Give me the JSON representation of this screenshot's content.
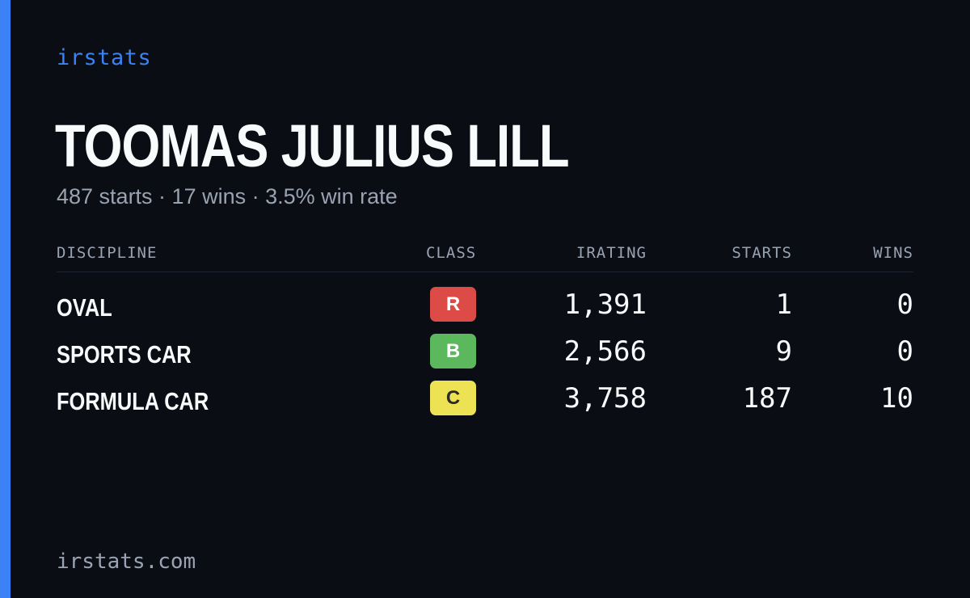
{
  "brand": "irstats",
  "driver": {
    "name": "TOOMAS JULIUS LILL",
    "summary": "487 starts · 17 wins · 3.5% win rate"
  },
  "table": {
    "headers": {
      "discipline": "DISCIPLINE",
      "class": "CLASS",
      "irating": "IRATING",
      "starts": "STARTS",
      "wins": "WINS"
    },
    "rows": [
      {
        "discipline": "OVAL",
        "class": "R",
        "class_color": "#dc4b46",
        "irating": "1,391",
        "starts": "1",
        "wins": "0"
      },
      {
        "discipline": "SPORTS CAR",
        "class": "B",
        "class_color": "#5cb85c",
        "irating": "2,566",
        "starts": "9",
        "wins": "0"
      },
      {
        "discipline": "FORMULA CAR",
        "class": "C",
        "class_color": "#ede253",
        "irating": "3,758",
        "starts": "187",
        "wins": "10"
      }
    ]
  },
  "footer": {
    "url": "irstats.com"
  },
  "colors": {
    "background": "#0a0d14",
    "accent": "#3b82f6",
    "muted_text": "#9aa3b2"
  }
}
